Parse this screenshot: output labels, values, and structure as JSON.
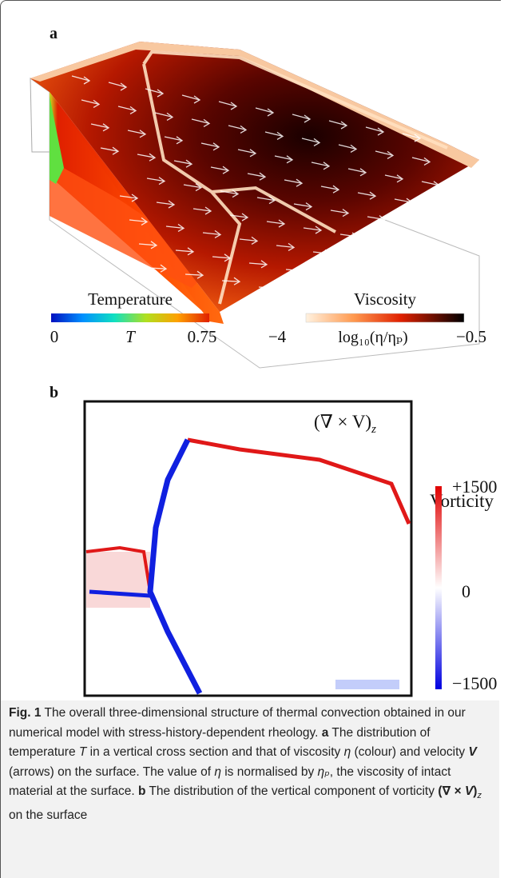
{
  "panel_a": {
    "label": "a",
    "temperature_bar": {
      "title": "Temperature",
      "min_label": "0",
      "mid_label": "T",
      "max_label": "0.75"
    },
    "viscosity_bar": {
      "title": "Viscosity",
      "min_label": "−4",
      "mid_label": "log₁₀(η/ηₚ)",
      "max_label": "−0.5"
    }
  },
  "panel_b": {
    "label": "b",
    "annotation": {
      "main": "(∇ × V)",
      "sub": "z"
    },
    "vorticity_bar": {
      "title": "Vorticity",
      "max_label": "+1500",
      "mid_label": "0",
      "min_label": "−1500"
    }
  },
  "caption": {
    "runs": [
      "Fig. 1",
      " The overall three-dimensional structure of thermal convection obtained in our numerical model with stress-history-dependent rheology. ",
      "a",
      " The distribution of temperature ",
      "T",
      " in a vertical cross section and that of viscosity ",
      "η",
      " (colour) and velocity ",
      "V",
      " (arrows) on the surface. The value of ",
      "η",
      " is normalised by ",
      "ηₚ",
      ", the viscosity of intact material at the surface. ",
      "b",
      " The distribution of the vertical component of vorticity ",
      "(∇ × ",
      "V",
      ")",
      "z",
      " on the surface"
    ]
  }
}
